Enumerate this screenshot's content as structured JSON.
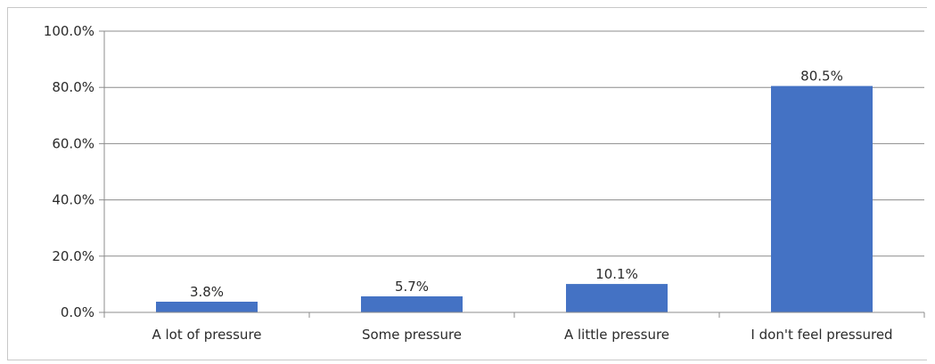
{
  "chart_data": {
    "type": "bar",
    "title": "",
    "xlabel": "",
    "ylabel": "",
    "categories": [
      "A lot of pressure",
      "Some pressure",
      "A little pressure",
      "I don't feel pressured"
    ],
    "values": [
      3.8,
      5.7,
      10.1,
      80.5
    ],
    "data_labels": [
      "3.8%",
      "5.7%",
      "10.1%",
      "80.5%"
    ],
    "ylim": [
      0,
      100
    ],
    "yticks": [
      0,
      20,
      40,
      60,
      80,
      100
    ],
    "ytick_labels": [
      "0.0%",
      "20.0%",
      "40.0%",
      "60.0%",
      "80.0%",
      "100.0%"
    ],
    "grid": true,
    "legend": "none",
    "bar_color": "#4472c4"
  }
}
